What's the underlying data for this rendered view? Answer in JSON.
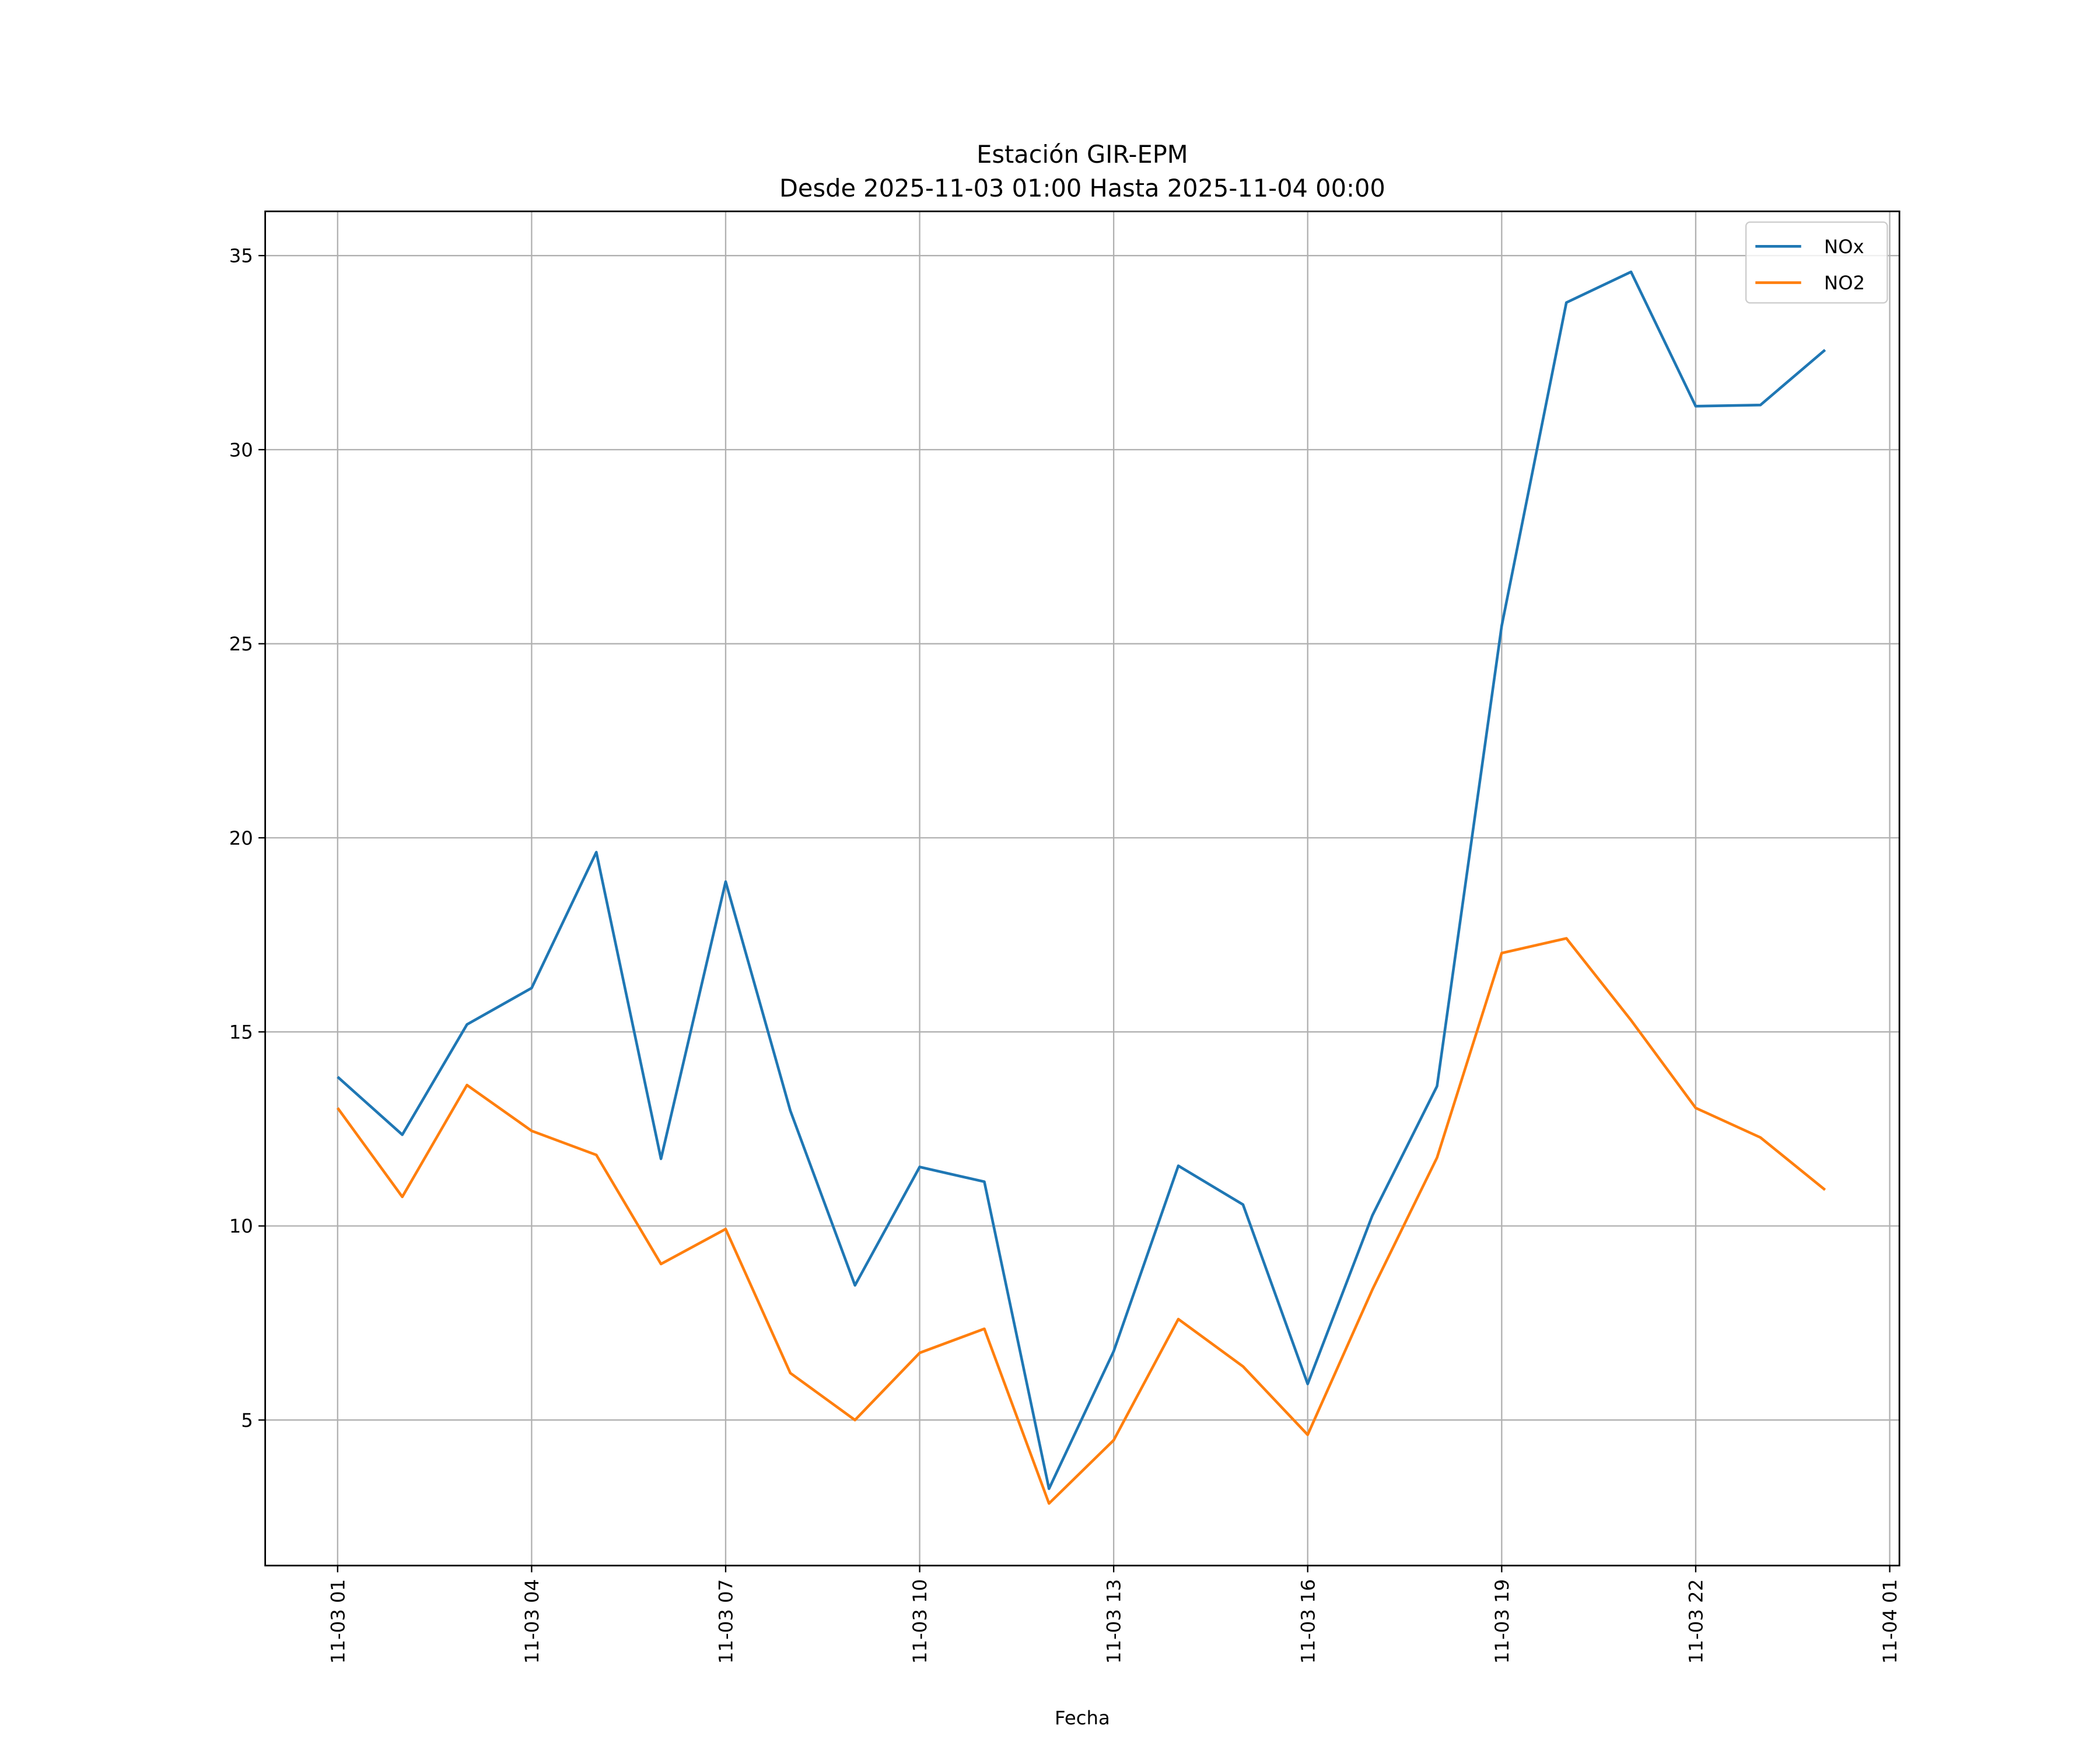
{
  "chart_data": {
    "type": "line",
    "title": "Estación GIR-EPM",
    "subtitle": "Desde 2025-11-03 01:00 Hasta 2025-11-04 00:00",
    "xlabel": "Fecha",
    "ylabel": "",
    "x_hours": [
      1,
      2,
      3,
      4,
      5,
      6,
      7,
      8,
      9,
      10,
      11,
      12,
      13,
      14,
      15,
      16,
      17,
      18,
      19,
      20,
      21,
      22,
      23,
      24
    ],
    "x": [
      "2025-11-03 01:00",
      "2025-11-03 02:00",
      "2025-11-03 03:00",
      "2025-11-03 04:00",
      "2025-11-03 05:00",
      "2025-11-03 06:00",
      "2025-11-03 07:00",
      "2025-11-03 08:00",
      "2025-11-03 09:00",
      "2025-11-03 10:00",
      "2025-11-03 11:00",
      "2025-11-03 12:00",
      "2025-11-03 13:00",
      "2025-11-03 14:00",
      "2025-11-03 15:00",
      "2025-11-03 16:00",
      "2025-11-03 17:00",
      "2025-11-03 18:00",
      "2025-11-03 19:00",
      "2025-11-03 20:00",
      "2025-11-03 21:00",
      "2025-11-03 22:00",
      "2025-11-03 23:00",
      "2025-11-04 00:00"
    ],
    "series": [
      {
        "name": "NOx",
        "color": "#1f77b4",
        "values": [
          13.84,
          12.35,
          15.19,
          16.13,
          19.63,
          11.73,
          18.87,
          12.97,
          8.47,
          11.52,
          11.14,
          3.23,
          6.77,
          11.55,
          10.55,
          5.93,
          10.27,
          13.6,
          25.46,
          33.79,
          34.58,
          31.12,
          31.15,
          32.57
        ]
      },
      {
        "name": "NO2",
        "color": "#ff7f0e",
        "values": [
          13.04,
          10.75,
          13.63,
          12.45,
          11.83,
          9.02,
          9.92,
          6.21,
          5.0,
          6.73,
          7.35,
          2.85,
          4.48,
          7.6,
          6.38,
          4.62,
          8.36,
          11.76,
          17.03,
          17.41,
          15.3,
          13.04,
          12.28,
          10.93
        ]
      }
    ],
    "x_ticks": [
      {
        "hour": 1,
        "label": "11-03 01"
      },
      {
        "hour": 4,
        "label": "11-03 04"
      },
      {
        "hour": 7,
        "label": "11-03 07"
      },
      {
        "hour": 10,
        "label": "11-03 10"
      },
      {
        "hour": 13,
        "label": "11-03 13"
      },
      {
        "hour": 16,
        "label": "11-03 16"
      },
      {
        "hour": 19,
        "label": "11-03 19"
      },
      {
        "hour": 22,
        "label": "11-03 22"
      },
      {
        "hour": 25,
        "label": "11-04 01"
      }
    ],
    "y_ticks": [
      5,
      10,
      15,
      20,
      25,
      30,
      35
    ],
    "xlim_hours": [
      -0.12,
      25.15
    ],
    "ylim": [
      1.25,
      36.14
    ],
    "grid": true,
    "legend": "top-right"
  }
}
